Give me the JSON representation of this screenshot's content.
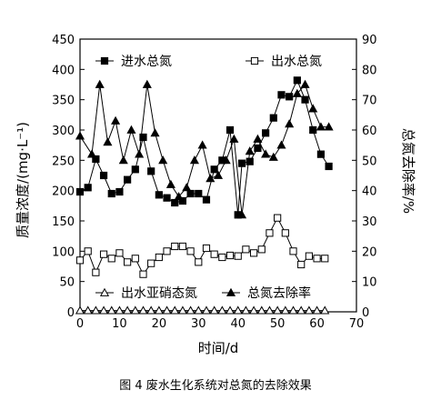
{
  "caption": "图 4 废水生化系统对总氮的去除效果",
  "chart_data": {
    "type": "line",
    "xlabel": "时间/d",
    "ylabel_left": "质量浓度/(mg·L⁻¹)",
    "ylabel_right": "总氮去除率/%",
    "xlim": [
      0,
      70
    ],
    "ylim_left": [
      0,
      450
    ],
    "ylim_right": [
      0,
      90
    ],
    "x_ticks": [
      0,
      10,
      20,
      30,
      40,
      50,
      60,
      70
    ],
    "y_ticks_left": [
      0,
      50,
      100,
      150,
      200,
      250,
      300,
      350,
      400,
      450
    ],
    "y_ticks_right": [
      0,
      10,
      20,
      30,
      40,
      50,
      60,
      70,
      80,
      90
    ],
    "grid": false,
    "series": [
      {
        "name": "进水总氮",
        "axis": "left",
        "marker": "filled-square",
        "x": [
          0,
          2,
          4,
          6,
          8,
          10,
          12,
          14,
          16,
          18,
          20,
          22,
          24,
          26,
          28,
          30,
          32,
          34,
          36,
          38,
          40,
          41,
          43,
          45,
          47,
          49,
          51,
          53,
          55,
          57,
          59,
          61,
          63
        ],
        "y": [
          198,
          205,
          252,
          225,
          195,
          198,
          218,
          235,
          288,
          232,
          193,
          188,
          180,
          183,
          195,
          195,
          185,
          235,
          250,
          300,
          160,
          245,
          248,
          270,
          295,
          320,
          358,
          355,
          382,
          350,
          300,
          260,
          240
        ]
      },
      {
        "name": "出水总氮",
        "axis": "left",
        "marker": "open-square",
        "x": [
          0,
          2,
          4,
          6,
          8,
          10,
          12,
          14,
          16,
          18,
          20,
          22,
          24,
          26,
          28,
          30,
          32,
          34,
          36,
          38,
          40,
          42,
          44,
          46,
          48,
          50,
          52,
          54,
          56,
          58,
          60,
          62
        ],
        "y": [
          85,
          100,
          65,
          95,
          88,
          97,
          82,
          88,
          62,
          80,
          90,
          100,
          108,
          108,
          100,
          82,
          105,
          95,
          90,
          93,
          92,
          103,
          97,
          103,
          130,
          155,
          130,
          100,
          78,
          92,
          88,
          88
        ]
      },
      {
        "name": "出水亚硝态氮",
        "axis": "left",
        "marker": "open-triangle",
        "x": [
          0,
          2,
          4,
          6,
          8,
          10,
          12,
          14,
          16,
          18,
          20,
          22,
          24,
          26,
          28,
          30,
          32,
          34,
          36,
          38,
          40,
          42,
          44,
          46,
          48,
          50,
          52,
          54,
          56,
          58,
          60,
          62
        ],
        "y": [
          2,
          2,
          2,
          2,
          2,
          2,
          2,
          2,
          2,
          2,
          2,
          2,
          2,
          2,
          2,
          2,
          2,
          2,
          2,
          2,
          2,
          2,
          2,
          2,
          2,
          2,
          2,
          2,
          2,
          2,
          2,
          2
        ]
      },
      {
        "name": "总氮去除率",
        "axis": "right",
        "marker": "filled-triangle",
        "x": [
          0,
          3,
          5,
          7,
          9,
          11,
          13,
          15,
          17,
          19,
          21,
          23,
          25,
          27,
          29,
          31,
          33,
          35,
          37,
          39,
          41,
          43,
          45,
          47,
          49,
          51,
          53,
          55,
          57,
          59,
          61,
          63
        ],
        "y": [
          58,
          52,
          75,
          56,
          63,
          50,
          60,
          52,
          75,
          59,
          50,
          42,
          38,
          41,
          50,
          55,
          44,
          45,
          50,
          57,
          32,
          53,
          57,
          52,
          51,
          55,
          62,
          72,
          75,
          67,
          61,
          61
        ]
      }
    ],
    "legend": [
      {
        "label": "进水总氮",
        "marker": "filled-square",
        "position": "top-left"
      },
      {
        "label": "出水总氮",
        "marker": "open-square",
        "position": "top-right"
      },
      {
        "label": "出水亚硝态氮",
        "marker": "open-triangle",
        "position": "bottom-left"
      },
      {
        "label": "总氮去除率",
        "marker": "filled-triangle",
        "position": "bottom-right"
      }
    ]
  }
}
